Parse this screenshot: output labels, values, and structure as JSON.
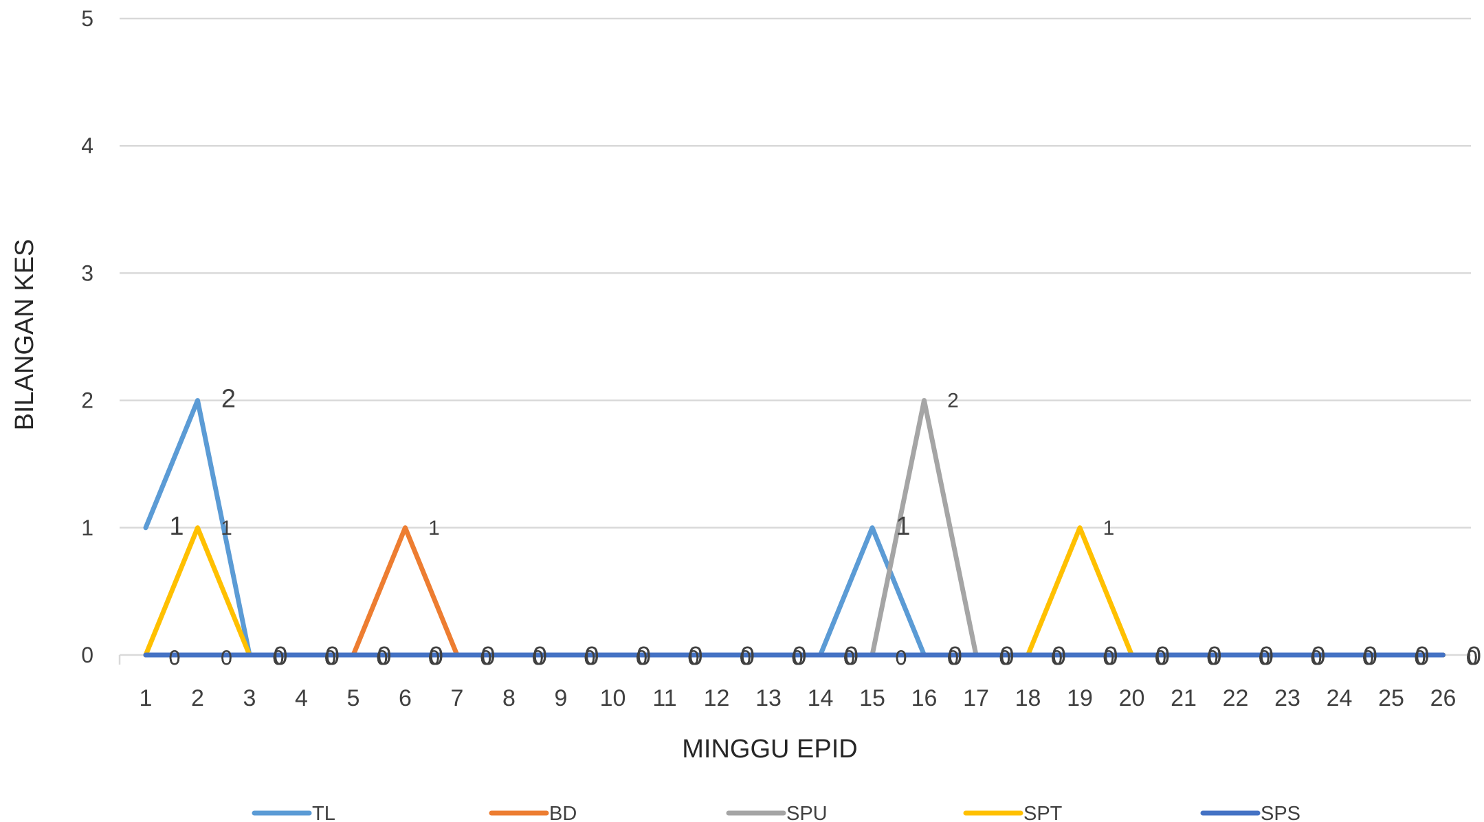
{
  "chart_data": {
    "type": "line",
    "title": "",
    "xlabel": "MINGGU EPID",
    "ylabel": "BILANGAN KES",
    "categories": [
      "1",
      "2",
      "3",
      "4",
      "5",
      "6",
      "7",
      "8",
      "9",
      "10",
      "11",
      "12",
      "13",
      "14",
      "15",
      "16",
      "17",
      "18",
      "19",
      "20",
      "21",
      "22",
      "23",
      "24",
      "25",
      "26"
    ],
    "ylim": [
      0,
      5
    ],
    "yticks": [
      "0",
      "1",
      "2",
      "3",
      "4",
      "5"
    ],
    "grid": true,
    "legend_position": "bottom",
    "series": [
      {
        "name": "TL",
        "color": "#5B9BD5",
        "values": [
          1,
          2,
          0,
          0,
          0,
          0,
          0,
          0,
          0,
          0,
          0,
          0,
          0,
          0,
          1,
          0,
          0,
          0,
          0,
          0,
          0,
          0,
          0,
          0,
          0,
          0
        ]
      },
      {
        "name": "BD",
        "color": "#ED7D31",
        "values": [
          0,
          0,
          0,
          0,
          0,
          1,
          0,
          0,
          0,
          0,
          0,
          0,
          0,
          0,
          0,
          0,
          0,
          0,
          0,
          0,
          0,
          0,
          0,
          0,
          0,
          0
        ]
      },
      {
        "name": "SPU",
        "color": "#A5A5A5",
        "values": [
          0,
          0,
          0,
          0,
          0,
          0,
          0,
          0,
          0,
          0,
          0,
          0,
          0,
          0,
          0,
          2,
          0,
          0,
          0,
          0,
          0,
          0,
          0,
          0,
          0,
          0
        ]
      },
      {
        "name": "SPT",
        "color": "#FFC000",
        "values": [
          0,
          1,
          0,
          0,
          0,
          0,
          0,
          0,
          0,
          0,
          0,
          0,
          0,
          0,
          0,
          0,
          0,
          0,
          1,
          0,
          0,
          0,
          0,
          0,
          0,
          0
        ]
      },
      {
        "name": "SPS",
        "color": "#4472C4",
        "values": [
          0,
          0,
          0,
          0,
          0,
          0,
          0,
          0,
          0,
          0,
          0,
          0,
          0,
          0,
          0,
          0,
          0,
          0,
          0,
          0,
          0,
          0,
          0,
          0,
          0,
          0
        ]
      }
    ]
  }
}
